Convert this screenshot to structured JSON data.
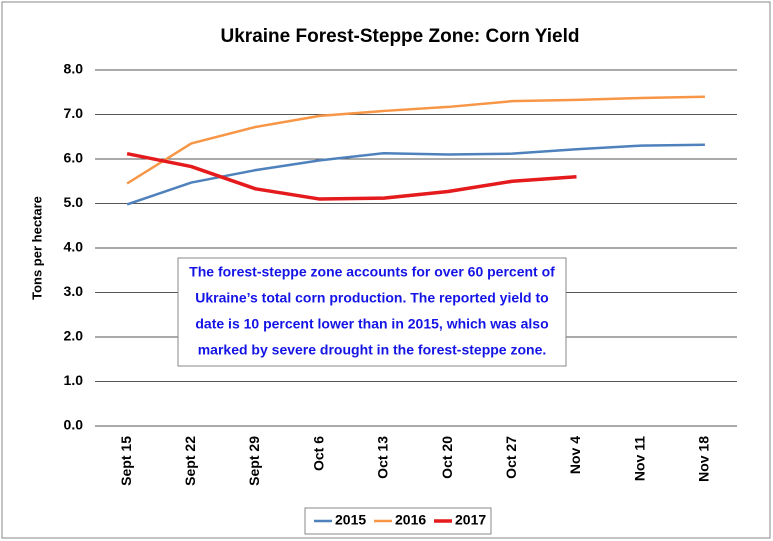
{
  "chart_data": {
    "type": "line",
    "title": "Ukraine Forest-Steppe Zone: Corn Yield",
    "ylabel": "Tons per hectare",
    "categories": [
      "Sept 15",
      "Sept 22",
      "Sept 29",
      "Oct 6",
      "Oct 13",
      "Oct 20",
      "Oct 27",
      "Nov 4",
      "Nov 11",
      "Nov 18"
    ],
    "series": [
      {
        "name": "2015",
        "color": "#4f81bd",
        "values": [
          4.98,
          5.47,
          5.75,
          5.97,
          6.13,
          6.1,
          6.12,
          6.22,
          6.3,
          6.32
        ]
      },
      {
        "name": "2016",
        "color": "#f79646",
        "values": [
          5.45,
          6.35,
          6.72,
          6.97,
          7.08,
          7.17,
          7.3,
          7.33,
          7.37,
          7.4
        ]
      },
      {
        "name": "2017",
        "color": "#e41a1c",
        "values": [
          6.12,
          5.83,
          5.33,
          5.1,
          5.12,
          5.27,
          5.5,
          5.6,
          null,
          null
        ]
      }
    ],
    "ylim": [
      0,
      8
    ],
    "yticks": [
      {
        "value": 0,
        "label": "0.0"
      },
      {
        "value": 1,
        "label": "1.0"
      },
      {
        "value": 2,
        "label": "2.0"
      },
      {
        "value": 3,
        "label": "3.0"
      },
      {
        "value": 4,
        "label": "4.0"
      },
      {
        "value": 5,
        "label": "5.0"
      },
      {
        "value": 6,
        "label": "6.0"
      },
      {
        "value": 7,
        "label": "7.0"
      },
      {
        "value": 8,
        "label": "8.0"
      }
    ],
    "grid": true,
    "legend": "bottom",
    "annotation": [
      "The forest-steppe zone accounts for over 60 percent of",
      "Ukraine’s total corn production.  The reported yield to",
      "date is 10 percent lower than in 2015, which was also",
      "marked by severe drought in the forest-steppe zone."
    ],
    "annotation_color": "#1414e6"
  }
}
